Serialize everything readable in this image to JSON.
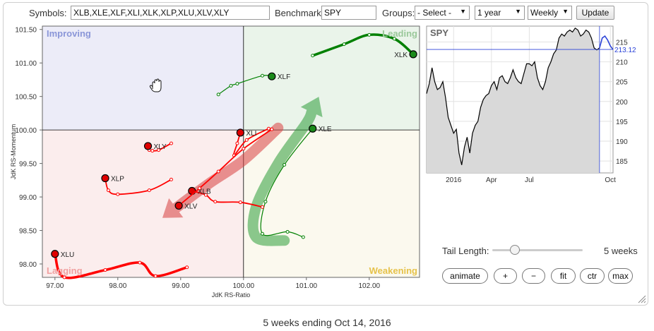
{
  "controls": {
    "symbols_label": "Symbols:",
    "symbols_value": "XLB,XLE,XLF,XLI,XLK,XLP,XLU,XLV,XLY",
    "benchmark_label": "Benchmark:",
    "benchmark_value": "SPY",
    "groups_label": "Groups:",
    "groups_value": "- Select -",
    "period_value": "1 year",
    "frequency_value": "Weekly",
    "update_label": "Update"
  },
  "chart_data": [
    {
      "type": "scatter",
      "xlabel": "JdK RS-Ratio",
      "ylabel": "JdK RS-Momentum",
      "xlim": [
        96.8,
        102.8
      ],
      "ylim": [
        97.8,
        101.55
      ],
      "x_ticks": [
        "97.00",
        "98.00",
        "99.00",
        "100.00",
        "101.00",
        "102.00"
      ],
      "y_ticks": [
        "98.00",
        "98.50",
        "99.00",
        "99.50",
        "100.00",
        "100.50",
        "101.00",
        "101.50"
      ],
      "quadrants": {
        "improving": "Improving",
        "leading": "Leading",
        "weakening": "Weakening",
        "lagging": "Lagging"
      },
      "colors": {
        "leading": "#008000",
        "lagging": "#ff0000",
        "improving_bg": "#ececf8",
        "leading_bg": "#eaf4ea",
        "weakening_bg": "#fbf9ee",
        "lagging_bg": "#fbeded"
      },
      "series": [
        {
          "name": "XLK",
          "color": "#008000",
          "head_color": "#1a8a1a",
          "x": [
            101.1,
            101.6,
            102.0,
            102.4,
            102.7
          ],
          "y": [
            101.11,
            101.28,
            101.42,
            101.36,
            101.13
          ]
        },
        {
          "name": "XLF",
          "color": "#008000",
          "head_color": "#1a8a1a",
          "x": [
            99.6,
            99.8,
            99.9,
            100.3,
            100.45
          ],
          "y": [
            100.53,
            100.66,
            100.69,
            100.81,
            100.8
          ]
        },
        {
          "name": "XLE",
          "color": "#008000",
          "head_color": "#1a8a1a",
          "x": [
            100.95,
            100.7,
            100.3,
            100.35,
            100.65,
            101.1
          ],
          "y": [
            98.4,
            98.48,
            98.45,
            98.93,
            99.48,
            100.02
          ]
        },
        {
          "name": "XLI",
          "color": "#ff0000",
          "head_color": "#e00000",
          "x": [
            100.4,
            100.05,
            99.85,
            99.9,
            99.95
          ],
          "y": [
            100.02,
            99.85,
            99.62,
            99.8,
            99.96
          ]
        },
        {
          "name": "XLY",
          "color": "#ff0000",
          "head_color": "#e00000",
          "x": [
            98.85,
            98.65,
            98.55,
            98.5,
            98.48
          ],
          "y": [
            99.8,
            99.7,
            99.69,
            99.7,
            99.76
          ]
        },
        {
          "name": "XLP",
          "color": "#ff0000",
          "head_color": "#e00000",
          "x": [
            98.85,
            98.5,
            98.0,
            97.85,
            97.8
          ],
          "y": [
            99.26,
            99.1,
            99.04,
            99.1,
            99.28
          ]
        },
        {
          "name": "XLB",
          "color": "#ff0000",
          "head_color": "#e00000",
          "x": [
            100.3,
            99.95,
            99.55,
            99.4,
            99.18
          ],
          "y": [
            98.85,
            98.92,
            98.93,
            99.03,
            99.09
          ]
        },
        {
          "name": "XLV",
          "color": "#ff0000",
          "head_color": "#e00000",
          "x": [
            100.45,
            100.0,
            99.6,
            99.3,
            98.97
          ],
          "y": [
            100.01,
            99.72,
            99.38,
            99.13,
            98.87
          ]
        },
        {
          "name": "XLU",
          "color": "#ff0000",
          "head_color": "#e00000",
          "x": [
            99.1,
            98.6,
            98.35,
            97.8,
            97.15,
            97.0
          ],
          "y": [
            97.95,
            97.82,
            98.02,
            97.91,
            97.8,
            98.15
          ]
        }
      ],
      "overlay_arrows": [
        {
          "color": "#d84040",
          "x": [
            100.55,
            100.0,
            99.45,
            98.8
          ],
          "y": [
            100.03,
            99.55,
            99.2,
            98.75
          ]
        },
        {
          "color": "#2e9e3a",
          "x": [
            100.65,
            100.2,
            100.2,
            100.55,
            101.0,
            101.15
          ],
          "y": [
            98.35,
            98.4,
            98.85,
            99.5,
            100.1,
            100.4
          ]
        }
      ]
    },
    {
      "type": "line",
      "title": "SPY",
      "x_ticks": [
        "2016",
        "Apr",
        "Jul",
        "Oct"
      ],
      "ylim": [
        182,
        219
      ],
      "y_ticks": [
        "185",
        "190",
        "195",
        "200",
        "205",
        "210",
        "215"
      ],
      "current_value_label": "213.12",
      "current_value": 213.12,
      "line_color": "#000000",
      "recent_color": "#2c43d8",
      "values": [
        202,
        204.5,
        208.5,
        205,
        203,
        203.5,
        205,
        201,
        196,
        194,
        192,
        193,
        187,
        184,
        188.5,
        191,
        187,
        192,
        194,
        195,
        198.5,
        200.5,
        201.5,
        202,
        204,
        205,
        203,
        206,
        206.5,
        205,
        204.5,
        206,
        208,
        206,
        205,
        204.5,
        207,
        209.5,
        209.5,
        209,
        210,
        206,
        204,
        203,
        205,
        208.5,
        210,
        212,
        213,
        216,
        217,
        216.5,
        217.5,
        218,
        217.5,
        218.5,
        218,
        216.5,
        217,
        218,
        217.5,
        216,
        213.5,
        213,
        213.5,
        216,
        216.5,
        215.5,
        214,
        213.1
      ]
    }
  ],
  "tail": {
    "label": "Tail Length:",
    "value_label": "5 weeks",
    "value": 5,
    "max": 20
  },
  "buttons": {
    "animate": "animate",
    "plus": "+",
    "minus": "−",
    "fit": "fit",
    "ctr": "ctr",
    "max": "max"
  },
  "caption": "5 weeks ending Oct 14, 2016"
}
